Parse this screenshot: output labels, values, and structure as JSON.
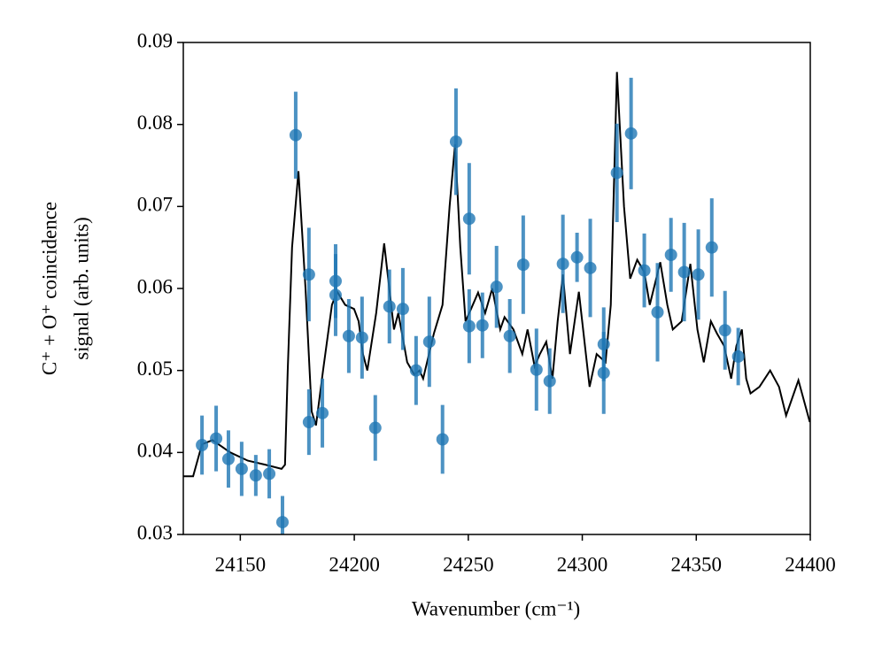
{
  "chart_data": {
    "type": "scatter",
    "xlabel": "Wavenumber (cm⁻¹)",
    "ylabel": [
      "C⁺ + O⁺ coincidence",
      "signal (arb. units)"
    ],
    "xlim": [
      24125,
      24400
    ],
    "ylim": [
      0.03,
      0.09
    ],
    "xticks": [
      24150,
      24200,
      24250,
      24300,
      24350,
      24400
    ],
    "yticks": [
      0.03,
      0.04,
      0.05,
      0.06,
      0.07,
      0.08,
      0.09
    ],
    "series": [
      {
        "type": "line",
        "color": "#000000",
        "x": [
          24125.0,
          24129.3,
          24133.2,
          24137.8,
          24145.6,
          24153.3,
          24161.1,
          24168.1,
          24169.6,
          24170.8,
          24172.7,
          24175.5,
          24178.6,
          24181.3,
          24183.2,
          24186.3,
          24190.2,
          24192.5,
          24196.0,
          24199.9,
          24201.9,
          24203.8,
          24205.7,
          24209.6,
          24213.1,
          24217.4,
          24219.3,
          24223.2,
          24226.3,
          24228.6,
          24230.2,
          24234.9,
          24238.7,
          24241.8,
          24244.2,
          24246.5,
          24248.8,
          24251.2,
          24254.3,
          24257.4,
          24260.5,
          24264.0,
          24265.9,
          24269.8,
          24273.7,
          24276.0,
          24279.1,
          24281.4,
          24284.2,
          24286.9,
          24289.2,
          24291.5,
          24294.6,
          24298.5,
          24303.2,
          24306.3,
          24310.2,
          24312.5,
          24315.2,
          24318.3,
          24321.0,
          24324.1,
          24327.2,
          24329.6,
          24334.2,
          24337.3,
          24339.7,
          24343.6,
          24347.4,
          24350.5,
          24353.3,
          24356.4,
          24359.1,
          24362.2,
          24365.3,
          24367.6,
          24370.0,
          24371.9,
          24373.8,
          24377.7,
          24382.4,
          24386.3,
          24389.4,
          24394.8,
          24399.8
        ],
        "values": [
          0.0371,
          0.0371,
          0.041,
          0.0415,
          0.04,
          0.039,
          0.0385,
          0.038,
          0.0385,
          0.05,
          0.065,
          0.0743,
          0.06,
          0.045,
          0.0433,
          0.05,
          0.058,
          0.0596,
          0.058,
          0.0575,
          0.056,
          0.052,
          0.05,
          0.057,
          0.0655,
          0.055,
          0.057,
          0.051,
          0.0495,
          0.05,
          0.049,
          0.0545,
          0.058,
          0.07,
          0.0776,
          0.065,
          0.056,
          0.0575,
          0.0595,
          0.057,
          0.06,
          0.055,
          0.0565,
          0.055,
          0.052,
          0.055,
          0.0505,
          0.052,
          0.0535,
          0.049,
          0.056,
          0.0617,
          0.052,
          0.0596,
          0.048,
          0.052,
          0.051,
          0.058,
          0.0864,
          0.07,
          0.0612,
          0.0635,
          0.062,
          0.058,
          0.0632,
          0.058,
          0.055,
          0.056,
          0.063,
          0.055,
          0.051,
          0.056,
          0.0545,
          0.053,
          0.049,
          0.053,
          0.055,
          0.049,
          0.0472,
          0.048,
          0.05,
          0.048,
          0.0445,
          0.0488,
          0.0437
        ]
      },
      {
        "type": "errorbar",
        "color": "#1f77b4",
        "x": [
          24133.2,
          24139.4,
          24144.8,
          24150.6,
          24156.8,
          24162.7,
          24168.5,
          24174.3,
          24180.1,
          24180.1,
          24186.0,
          24191.8,
          24191.8,
          24197.6,
          24203.4,
          24209.2,
          24215.4,
          24221.3,
          24227.1,
          24232.9,
          24238.7,
          24244.6,
          24250.4,
          24250.4,
          24256.2,
          24262.4,
          24268.2,
          24274.1,
          24279.9,
          24285.7,
          24291.5,
          24297.7,
          24303.5,
          24309.4,
          24309.4,
          24315.2,
          24321.4,
          24327.2,
          24333.0,
          24338.9,
          24344.7,
          24350.9,
          24356.8,
          24362.6,
          24368.4
        ],
        "values": [
          0.0409,
          0.0417,
          0.0392,
          0.038,
          0.0372,
          0.0374,
          0.0315,
          0.0787,
          0.0617,
          0.0437,
          0.0448,
          0.0609,
          0.0592,
          0.0542,
          0.054,
          0.043,
          0.0578,
          0.0575,
          0.05,
          0.0535,
          0.0416,
          0.0779,
          0.0685,
          0.0554,
          0.0555,
          0.0602,
          0.0542,
          0.0629,
          0.0501,
          0.0487,
          0.063,
          0.0638,
          0.0625,
          0.0532,
          0.0497,
          0.0741,
          0.0789,
          0.0622,
          0.0571,
          0.0641,
          0.062,
          0.0617,
          0.065,
          0.0549,
          0.0517
        ],
        "errors": [
          0.0036,
          0.004,
          0.0035,
          0.0033,
          0.0025,
          0.003,
          0.0032,
          0.0053,
          0.0057,
          0.004,
          0.0042,
          0.0045,
          0.005,
          0.0045,
          0.005,
          0.004,
          0.0045,
          0.005,
          0.0042,
          0.0055,
          0.0042,
          0.0065,
          0.0068,
          0.0045,
          0.004,
          0.005,
          0.0045,
          0.006,
          0.005,
          0.004,
          0.006,
          0.003,
          0.006,
          0.0045,
          0.005,
          0.006,
          0.0068,
          0.0045,
          0.006,
          0.0045,
          0.006,
          0.0055,
          0.006,
          0.0048,
          0.0035
        ]
      }
    ]
  }
}
